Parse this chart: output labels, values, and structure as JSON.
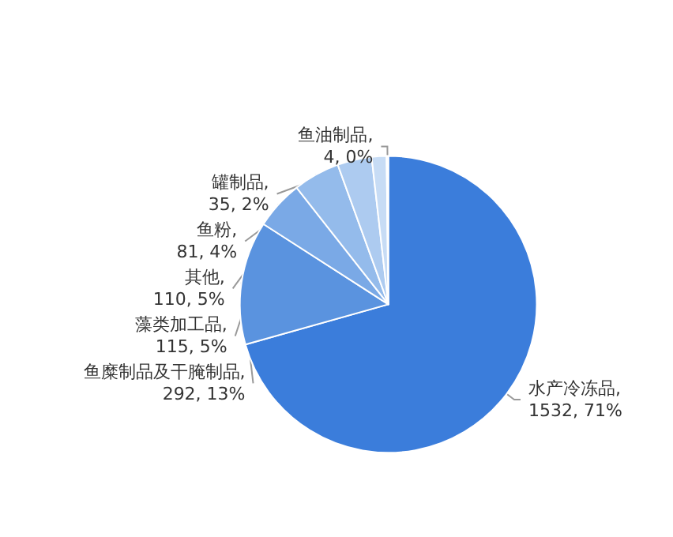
{
  "chart_data": {
    "type": "pie",
    "categories": [
      "水产冷冻品",
      "鱼糜制品及干腌制品",
      "藻类加工品",
      "其他",
      "鱼粉",
      "罐制品",
      "鱼油制品"
    ],
    "values": [
      1532,
      292,
      115,
      110,
      81,
      35,
      4
    ],
    "value_labels": [
      ", 1532, 71%",
      ", 292, 13%",
      ", 115, 5%",
      ", 110, 5%",
      ", 81, 4%",
      ", 35, 2%",
      ", 4, 0%"
    ],
    "colors": [
      "#3b7ddb",
      "#5a93df",
      "#7aa9e6",
      "#94bbeb",
      "#adcbf0",
      "#c7dcf5",
      "#e1ecfa"
    ]
  }
}
